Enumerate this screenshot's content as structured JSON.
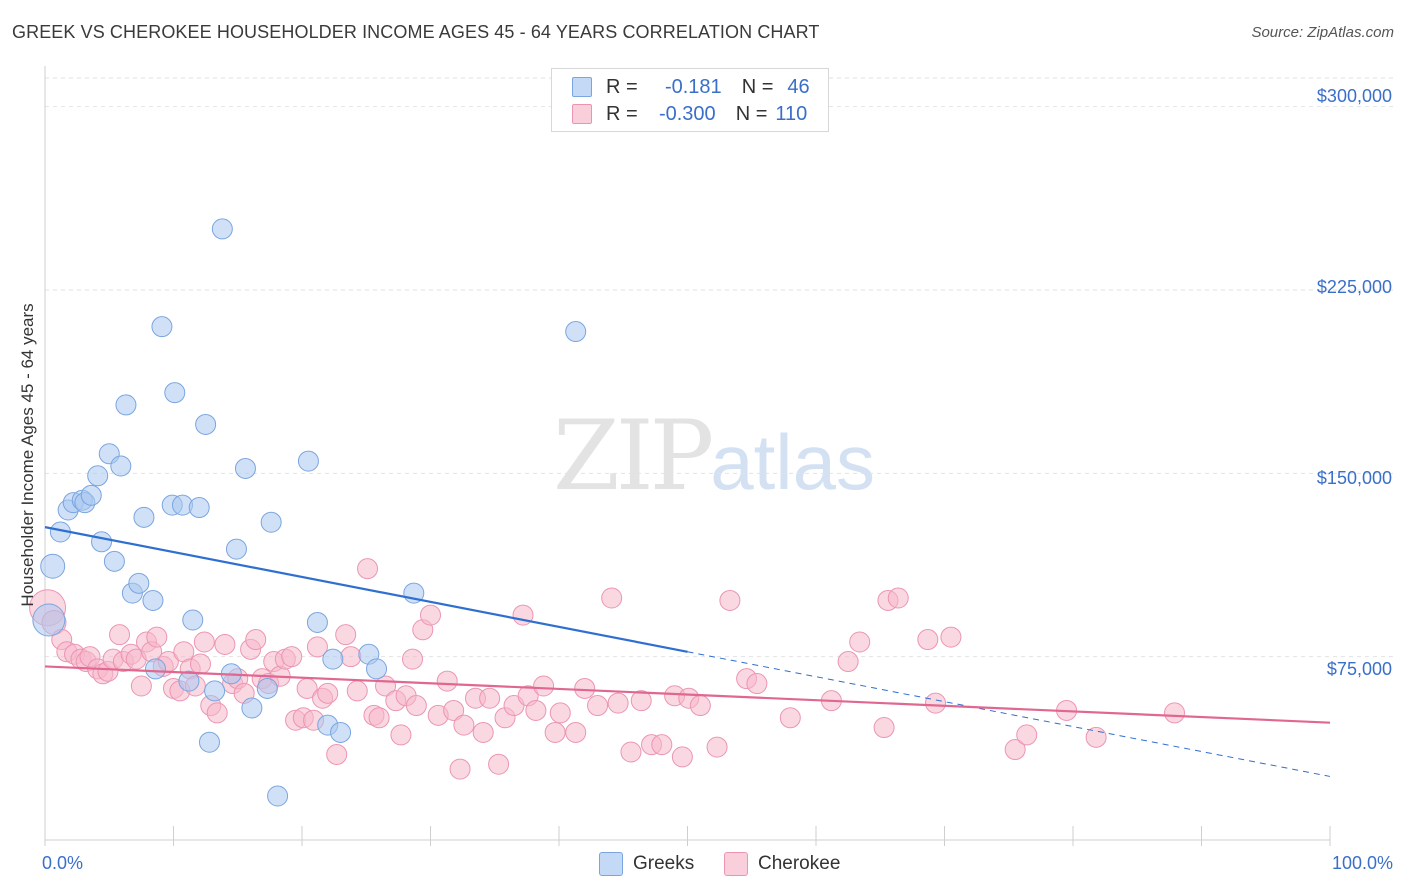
{
  "title": "GREEK VS CHEROKEE HOUSEHOLDER INCOME AGES 45 - 64 YEARS CORRELATION CHART",
  "source": "Source: ZipAtlas.com",
  "watermark": {
    "zip": "ZIP",
    "atlas": "atlas"
  },
  "colors": {
    "greeks": "#a9c8f0",
    "greeks_line": "#2f6fd0",
    "cherokee": "#f5b8cb",
    "cherokee_line": "#e06890",
    "axis_label": "#3a6fc9"
  },
  "legend": {
    "rows": [
      {
        "r_label": "R =",
        "r_value": "-0.181",
        "n_label": "N =",
        "n_value": "46"
      },
      {
        "r_label": "R =",
        "r_value": "-0.300",
        "n_label": "N =",
        "n_value": "110"
      }
    ]
  },
  "chart_data": {
    "type": "scatter",
    "title": "GREEK VS CHEROKEE HOUSEHOLDER INCOME AGES 45 - 64 YEARS CORRELATION CHART",
    "xlabel": "",
    "ylabel": "Householder Income Ages 45 - 64 years",
    "xlim": [
      0,
      100
    ],
    "ylim": [
      0,
      315000
    ],
    "x_tick_labels": [
      "0.0%",
      "100.0%"
    ],
    "y_ticks": [
      75000,
      150000,
      225000,
      300000
    ],
    "y_tick_labels": [
      "$75,000",
      "$150,000",
      "$225,000",
      "$300,000"
    ],
    "grid": true,
    "legend_position": "bottom",
    "series": [
      {
        "name": "Greeks",
        "r": -0.181,
        "n": 46,
        "trend": {
          "x": [
            0,
            50
          ],
          "y": [
            128000,
            77000
          ],
          "dashed_to": [
            100,
            26000
          ]
        },
        "points": [
          [
            0.3,
            90000,
            16
          ],
          [
            0.6,
            112000,
            12
          ],
          [
            1.2,
            126000,
            10
          ],
          [
            1.8,
            135000,
            10
          ],
          [
            2.2,
            138000,
            10
          ],
          [
            2.9,
            139000,
            10
          ],
          [
            3.1,
            138000,
            10
          ],
          [
            3.6,
            141000,
            10
          ],
          [
            4.1,
            149000,
            10
          ],
          [
            4.4,
            122000,
            10
          ],
          [
            5.0,
            158000,
            10
          ],
          [
            5.4,
            114000,
            10
          ],
          [
            5.9,
            153000,
            10
          ],
          [
            6.3,
            178000,
            10
          ],
          [
            6.8,
            101000,
            10
          ],
          [
            7.3,
            105000,
            10
          ],
          [
            7.7,
            132000,
            10
          ],
          [
            8.4,
            98000,
            10
          ],
          [
            8.6,
            70000,
            10
          ],
          [
            9.1,
            210000,
            10
          ],
          [
            9.9,
            137000,
            10
          ],
          [
            10.1,
            183000,
            10
          ],
          [
            10.7,
            137000,
            10
          ],
          [
            11.2,
            65000,
            10
          ],
          [
            11.5,
            90000,
            10
          ],
          [
            12.0,
            136000,
            10
          ],
          [
            12.5,
            170000,
            10
          ],
          [
            12.8,
            40000,
            10
          ],
          [
            13.2,
            61000,
            10
          ],
          [
            13.8,
            250000,
            10
          ],
          [
            14.5,
            68000,
            10
          ],
          [
            14.9,
            119000,
            10
          ],
          [
            15.6,
            152000,
            10
          ],
          [
            16.1,
            54000,
            10
          ],
          [
            17.3,
            62000,
            10
          ],
          [
            17.6,
            130000,
            10
          ],
          [
            18.1,
            18000,
            10
          ],
          [
            20.5,
            155000,
            10
          ],
          [
            21.2,
            89000,
            10
          ],
          [
            22.0,
            47000,
            10
          ],
          [
            22.4,
            74000,
            10
          ],
          [
            23.0,
            44000,
            10
          ],
          [
            25.2,
            76000,
            10
          ],
          [
            25.8,
            70000,
            10
          ],
          [
            28.7,
            101000,
            10
          ],
          [
            41.3,
            208000,
            10
          ]
        ]
      },
      {
        "name": "Cherokee",
        "r": -0.3,
        "n": 110,
        "trend": {
          "x": [
            0,
            100
          ],
          "y": [
            71000,
            48000
          ]
        },
        "points": [
          [
            0.2,
            95000,
            18
          ],
          [
            0.7,
            89000,
            12
          ],
          [
            1.3,
            82000,
            10
          ],
          [
            1.7,
            77000,
            10
          ],
          [
            2.3,
            76000,
            10
          ],
          [
            2.8,
            74000,
            10
          ],
          [
            3.2,
            73000,
            10
          ],
          [
            3.5,
            75000,
            10
          ],
          [
            4.1,
            70000,
            10
          ],
          [
            4.5,
            68000,
            10
          ],
          [
            4.9,
            69000,
            10
          ],
          [
            5.3,
            74000,
            10
          ],
          [
            5.8,
            84000,
            10
          ],
          [
            6.1,
            73000,
            10
          ],
          [
            6.7,
            76000,
            10
          ],
          [
            7.1,
            74000,
            10
          ],
          [
            7.5,
            63000,
            10
          ],
          [
            7.9,
            81000,
            10
          ],
          [
            8.3,
            77000,
            10
          ],
          [
            8.7,
            83000,
            10
          ],
          [
            9.2,
            71000,
            10
          ],
          [
            9.6,
            73000,
            10
          ],
          [
            10.0,
            62000,
            10
          ],
          [
            10.5,
            61000,
            10
          ],
          [
            10.8,
            77000,
            10
          ],
          [
            11.3,
            70000,
            10
          ],
          [
            11.7,
            63000,
            10
          ],
          [
            12.1,
            72000,
            10
          ],
          [
            12.4,
            81000,
            10
          ],
          [
            12.9,
            55000,
            10
          ],
          [
            13.4,
            52000,
            10
          ],
          [
            14.0,
            80000,
            10
          ],
          [
            14.6,
            64000,
            10
          ],
          [
            15.0,
            66000,
            10
          ],
          [
            15.5,
            60000,
            10
          ],
          [
            16.0,
            78000,
            10
          ],
          [
            16.4,
            82000,
            10
          ],
          [
            16.9,
            66000,
            10
          ],
          [
            17.4,
            64000,
            10
          ],
          [
            17.8,
            73000,
            10
          ],
          [
            18.3,
            67000,
            10
          ],
          [
            18.7,
            74000,
            10
          ],
          [
            19.2,
            75000,
            10
          ],
          [
            19.5,
            49000,
            10
          ],
          [
            20.1,
            50000,
            10
          ],
          [
            20.4,
            62000,
            10
          ],
          [
            20.9,
            49000,
            10
          ],
          [
            21.2,
            79000,
            10
          ],
          [
            21.6,
            58000,
            10
          ],
          [
            22.0,
            60000,
            10
          ],
          [
            22.7,
            35000,
            10
          ],
          [
            23.4,
            84000,
            10
          ],
          [
            23.8,
            75000,
            10
          ],
          [
            24.3,
            61000,
            10
          ],
          [
            25.1,
            111000,
            10
          ],
          [
            25.6,
            51000,
            10
          ],
          [
            26.0,
            50000,
            10
          ],
          [
            26.5,
            63000,
            10
          ],
          [
            27.3,
            57000,
            10
          ],
          [
            27.7,
            43000,
            10
          ],
          [
            28.1,
            59000,
            10
          ],
          [
            28.6,
            74000,
            10
          ],
          [
            28.9,
            55000,
            10
          ],
          [
            29.4,
            86000,
            10
          ],
          [
            30.0,
            92000,
            10
          ],
          [
            30.6,
            51000,
            10
          ],
          [
            31.3,
            65000,
            10
          ],
          [
            31.8,
            53000,
            10
          ],
          [
            32.3,
            29000,
            10
          ],
          [
            32.6,
            47000,
            10
          ],
          [
            33.5,
            58000,
            10
          ],
          [
            34.1,
            44000,
            10
          ],
          [
            34.6,
            58000,
            10
          ],
          [
            35.3,
            31000,
            10
          ],
          [
            35.8,
            50000,
            10
          ],
          [
            36.5,
            55000,
            10
          ],
          [
            37.2,
            92000,
            10
          ],
          [
            37.6,
            59000,
            10
          ],
          [
            38.2,
            53000,
            10
          ],
          [
            38.8,
            63000,
            10
          ],
          [
            39.7,
            44000,
            10
          ],
          [
            40.1,
            52000,
            10
          ],
          [
            41.3,
            44000,
            10
          ],
          [
            42.0,
            62000,
            10
          ],
          [
            43.0,
            55000,
            10
          ],
          [
            44.1,
            99000,
            10
          ],
          [
            44.6,
            56000,
            10
          ],
          [
            45.6,
            36000,
            10
          ],
          [
            46.4,
            57000,
            10
          ],
          [
            47.2,
            39000,
            10
          ],
          [
            48.0,
            39000,
            10
          ],
          [
            49.0,
            59000,
            10
          ],
          [
            49.6,
            34000,
            10
          ],
          [
            50.1,
            58000,
            10
          ],
          [
            51.0,
            55000,
            10
          ],
          [
            52.3,
            38000,
            10
          ],
          [
            53.3,
            98000,
            10
          ],
          [
            54.6,
            66000,
            10
          ],
          [
            55.4,
            64000,
            10
          ],
          [
            58.0,
            50000,
            10
          ],
          [
            61.2,
            57000,
            10
          ],
          [
            62.5,
            73000,
            10
          ],
          [
            63.4,
            81000,
            10
          ],
          [
            65.3,
            46000,
            10
          ],
          [
            65.6,
            98000,
            10
          ],
          [
            66.4,
            99000,
            10
          ],
          [
            68.7,
            82000,
            10
          ],
          [
            69.3,
            56000,
            10
          ],
          [
            70.5,
            83000,
            10
          ],
          [
            75.5,
            37000,
            10
          ],
          [
            76.4,
            43000,
            10
          ],
          [
            79.5,
            53000,
            10
          ],
          [
            81.8,
            42000,
            10
          ],
          [
            87.9,
            52000,
            10
          ]
        ]
      }
    ]
  }
}
